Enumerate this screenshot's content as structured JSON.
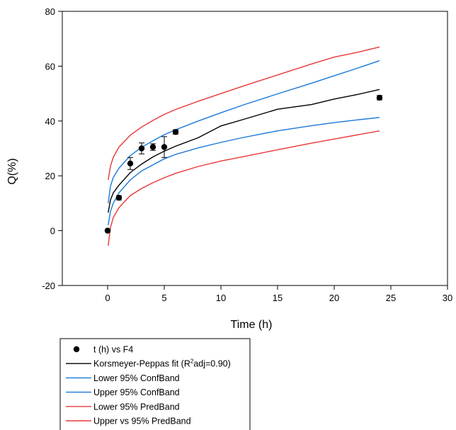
{
  "chart_data": {
    "type": "scatter",
    "xlabel": "Time (h)",
    "ylabel": "Q(%)",
    "xlim": [
      -4,
      30
    ],
    "ylim": [
      -20,
      80
    ],
    "xticks": [
      0,
      5,
      10,
      15,
      20,
      25,
      30
    ],
    "yticks": [
      -20,
      0,
      20,
      40,
      60,
      80
    ],
    "grid": false,
    "legend_position": "bottom-left",
    "points": {
      "name": "t (h) vs F4",
      "color": "#000000",
      "x": [
        0,
        1,
        2,
        3,
        4,
        5,
        6,
        24
      ],
      "y": [
        0,
        12,
        24.5,
        30,
        30.5,
        30.5,
        36,
        48.5
      ],
      "err": [
        0,
        0.8,
        2.2,
        2.0,
        1.2,
        3.8,
        0.8,
        0.8
      ]
    },
    "series": [
      {
        "name": "Korsmeyer-Peppas fit (R",
        "sup": "2",
        "name_suffix": "adj=0.90)",
        "color": "#000000",
        "x": [
          0.05,
          0.25,
          0.5,
          1,
          2,
          3,
          4,
          5,
          6,
          8,
          10,
          12,
          15,
          18,
          20,
          22,
          24
        ],
        "y": [
          6.6,
          11.2,
          13.8,
          16.6,
          21.2,
          24.3,
          26.9,
          29.0,
          30.8,
          33.9,
          38.2,
          40.6,
          44.3,
          46.0,
          48.0,
          49.6,
          51.5
        ]
      },
      {
        "name": "Lower 95% ConfBand",
        "color": "#1a78d8",
        "x": [
          0.05,
          0.25,
          0.5,
          1,
          2,
          3,
          4,
          5,
          6,
          8,
          10,
          12,
          15,
          18,
          20,
          22,
          24
        ],
        "y": [
          2.0,
          7.0,
          10.0,
          13.8,
          18.5,
          21.8,
          24.0,
          26.2,
          27.8,
          30.2,
          32.2,
          34.0,
          36.4,
          38.3,
          39.4,
          40.4,
          41.3
        ]
      },
      {
        "name": "Upper 95% ConfBand",
        "color": "#1a78d8",
        "x": [
          0.05,
          0.25,
          0.5,
          1,
          2,
          3,
          4,
          5,
          6,
          8,
          10,
          12,
          15,
          18,
          20,
          22,
          24
        ],
        "y": [
          10.0,
          16.2,
          19.4,
          22.8,
          27.4,
          30.4,
          32.8,
          35.0,
          36.8,
          40.0,
          43.0,
          45.9,
          49.9,
          53.8,
          56.5,
          59.2,
          62.0
        ]
      },
      {
        "name": "Lower 95% PredBand",
        "color": "#e83838",
        "x": [
          0.05,
          0.25,
          0.5,
          1,
          2,
          3,
          4,
          5,
          6,
          8,
          10,
          12,
          15,
          18,
          20,
          22,
          24
        ],
        "y": [
          -5.5,
          1.2,
          4.8,
          8.4,
          12.8,
          15.4,
          17.5,
          19.3,
          20.9,
          23.4,
          25.4,
          27.0,
          29.5,
          31.9,
          33.4,
          34.9,
          36.4
        ]
      },
      {
        "name": "Upper vs 95% PredBand",
        "color": "#e83838",
        "x": [
          0.05,
          0.25,
          0.5,
          1,
          2,
          3,
          4,
          5,
          6,
          8,
          10,
          12,
          15,
          18,
          20,
          22,
          24
        ],
        "y": [
          18.5,
          23.5,
          26.8,
          30.5,
          34.8,
          37.8,
          40.2,
          42.4,
          44.2,
          47.2,
          50.0,
          52.8,
          56.8,
          60.8,
          63.3,
          65.0,
          67.0
        ]
      }
    ]
  }
}
